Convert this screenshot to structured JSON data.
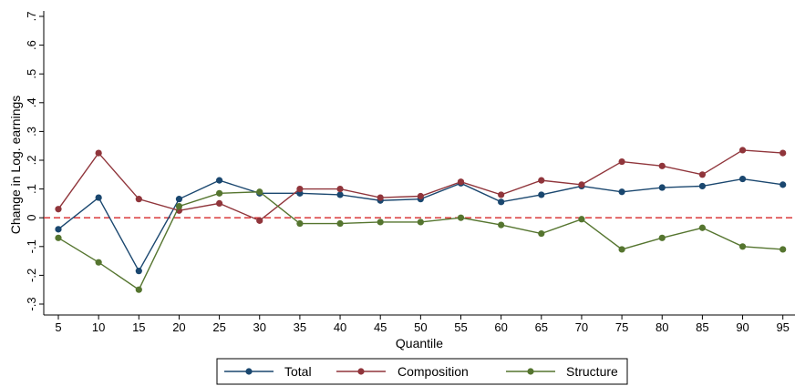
{
  "chart_data": {
    "type": "line",
    "title": "",
    "xlabel": "Quantile",
    "ylabel": "Change in Log. earnings",
    "x": [
      5,
      10,
      15,
      20,
      25,
      30,
      35,
      40,
      45,
      50,
      55,
      60,
      65,
      70,
      75,
      80,
      85,
      90,
      95
    ],
    "x_ticks": [
      "5",
      "10",
      "15",
      "20",
      "25",
      "30",
      "35",
      "40",
      "45",
      "50",
      "55",
      "60",
      "65",
      "70",
      "75",
      "80",
      "85",
      "90",
      "95"
    ],
    "ylim": [
      -0.3,
      0.7
    ],
    "y_ticks": [
      -0.3,
      -0.2,
      -0.1,
      0,
      0.1,
      0.2,
      0.3,
      0.4,
      0.5,
      0.6,
      0.7
    ],
    "y_tick_labels": [
      "-.3",
      "-.2",
      "-.1",
      "0",
      ".1",
      ".2",
      ".3",
      ".4",
      ".5",
      ".6",
      ".7"
    ],
    "reference_line": {
      "y": 0,
      "color": "#d62728",
      "style": "dashed"
    },
    "legend_position": "bottom",
    "series": [
      {
        "name": "Total",
        "color": "#1a476f",
        "values": [
          -0.04,
          0.07,
          -0.185,
          0.065,
          0.13,
          0.085,
          0.085,
          0.08,
          0.06,
          0.065,
          0.12,
          0.055,
          0.08,
          0.11,
          0.09,
          0.105,
          0.11,
          0.135,
          0.115
        ]
      },
      {
        "name": "Composition",
        "color": "#90353b",
        "values": [
          0.03,
          0.225,
          0.065,
          0.025,
          0.05,
          -0.01,
          0.1,
          0.1,
          0.07,
          0.075,
          0.125,
          0.08,
          0.13,
          0.115,
          0.195,
          0.18,
          0.15,
          0.235,
          0.225
        ]
      },
      {
        "name": "Structure",
        "color": "#55752f",
        "values": [
          -0.07,
          -0.155,
          -0.25,
          0.04,
          0.085,
          0.09,
          -0.02,
          -0.02,
          -0.015,
          -0.015,
          0.0,
          -0.025,
          -0.055,
          -0.005,
          -0.11,
          -0.07,
          -0.035,
          -0.1,
          -0.11
        ]
      }
    ]
  }
}
